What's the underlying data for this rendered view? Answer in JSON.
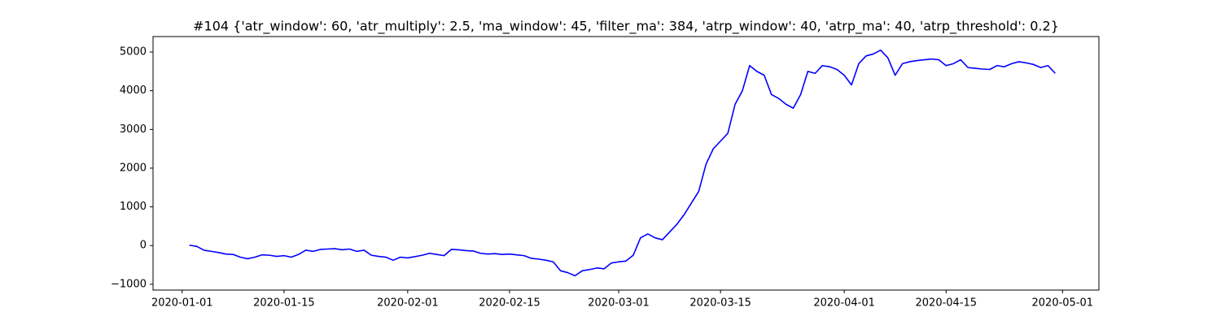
{
  "chart_data": {
    "type": "line",
    "title": "#104 {'atr_window': 60, 'atr_multiply': 2.5, 'ma_window': 45, 'filter_ma': 384, 'atrp_window': 40, 'atrp_ma': 40, 'atrp_threshold': 0.2}",
    "x": [
      "2020-01-02",
      "2020-01-03",
      "2020-01-04",
      "2020-01-05",
      "2020-01-06",
      "2020-01-07",
      "2020-01-08",
      "2020-01-09",
      "2020-01-10",
      "2020-01-11",
      "2020-01-12",
      "2020-01-13",
      "2020-01-14",
      "2020-01-15",
      "2020-01-16",
      "2020-01-17",
      "2020-01-18",
      "2020-01-19",
      "2020-01-20",
      "2020-01-21",
      "2020-01-22",
      "2020-01-23",
      "2020-01-24",
      "2020-01-25",
      "2020-01-26",
      "2020-01-27",
      "2020-01-28",
      "2020-01-29",
      "2020-01-30",
      "2020-01-31",
      "2020-02-01",
      "2020-02-03",
      "2020-02-04",
      "2020-02-05",
      "2020-02-06",
      "2020-02-07",
      "2020-02-08",
      "2020-02-09",
      "2020-02-10",
      "2020-02-11",
      "2020-02-12",
      "2020-02-13",
      "2020-02-14",
      "2020-02-15",
      "2020-02-16",
      "2020-02-17",
      "2020-02-18",
      "2020-02-19",
      "2020-02-20",
      "2020-02-21",
      "2020-02-22",
      "2020-02-23",
      "2020-02-24",
      "2020-02-25",
      "2020-02-26",
      "2020-02-27",
      "2020-02-28",
      "2020-02-29",
      "2020-03-01",
      "2020-03-02",
      "2020-03-03",
      "2020-03-04",
      "2020-03-05",
      "2020-03-06",
      "2020-03-07",
      "2020-03-08",
      "2020-03-09",
      "2020-03-10",
      "2020-03-11",
      "2020-03-12",
      "2020-03-13",
      "2020-03-14",
      "2020-03-15",
      "2020-03-16",
      "2020-03-17",
      "2020-03-18",
      "2020-03-19",
      "2020-03-20",
      "2020-03-21",
      "2020-03-22",
      "2020-03-23",
      "2020-03-24",
      "2020-03-25",
      "2020-03-26",
      "2020-03-27",
      "2020-03-28",
      "2020-03-29",
      "2020-03-30",
      "2020-03-31",
      "2020-04-01",
      "2020-04-02",
      "2020-04-03",
      "2020-04-04",
      "2020-04-05",
      "2020-04-06",
      "2020-04-07",
      "2020-04-08",
      "2020-04-09",
      "2020-04-10",
      "2020-04-11",
      "2020-04-12",
      "2020-04-13",
      "2020-04-14",
      "2020-04-15",
      "2020-04-16",
      "2020-04-17",
      "2020-04-18",
      "2020-04-19",
      "2020-04-20",
      "2020-04-21",
      "2020-04-22",
      "2020-04-23",
      "2020-04-24",
      "2020-04-25",
      "2020-04-26",
      "2020-04-27",
      "2020-04-28",
      "2020-04-29",
      "2020-04-30"
    ],
    "series": [
      {
        "color": "#0000ff",
        "values": [
          10,
          -20,
          -120,
          -150,
          -180,
          -220,
          -230,
          -300,
          -340,
          -300,
          -240,
          -250,
          -280,
          -260,
          -300,
          -230,
          -120,
          -150,
          -100,
          -90,
          -80,
          -110,
          -90,
          -150,
          -120,
          -250,
          -280,
          -300,
          -380,
          -300,
          -320,
          -250,
          -200,
          -230,
          -260,
          -100,
          -110,
          -130,
          -140,
          -200,
          -220,
          -210,
          -230,
          -220,
          -240,
          -260,
          -330,
          -350,
          -380,
          -420,
          -650,
          -700,
          -780,
          -650,
          -620,
          -580,
          -600,
          -450,
          -420,
          -400,
          -250,
          200,
          300,
          200,
          150,
          350,
          550,
          800,
          1100,
          1400,
          2100,
          2500,
          2700,
          2900,
          3650,
          4000,
          4650,
          4500,
          4400,
          3900,
          3800,
          3650,
          3550,
          3900,
          4500,
          4450,
          4650,
          4620,
          4550,
          4400,
          4150,
          4700,
          4900,
          4950,
          5050,
          4850,
          4400,
          4700,
          4750,
          4780,
          4800,
          4820,
          4800,
          4650,
          4700,
          4800,
          4600,
          4580,
          4560,
          4550,
          4650,
          4620,
          4700,
          4750,
          4720,
          4680,
          4600,
          4650,
          4450
        ]
      }
    ],
    "xlim": [
      "2019-12-28",
      "2020-05-06"
    ],
    "xticks": [
      "2020-01-01",
      "2020-01-15",
      "2020-02-01",
      "2020-02-15",
      "2020-03-01",
      "2020-03-15",
      "2020-04-01",
      "2020-04-15",
      "2020-05-01"
    ],
    "ylim": [
      -1150,
      5400
    ],
    "yticks": [
      {
        "value": -1000,
        "label": "−1000"
      },
      0,
      1000,
      2000,
      3000,
      4000,
      5000
    ]
  }
}
